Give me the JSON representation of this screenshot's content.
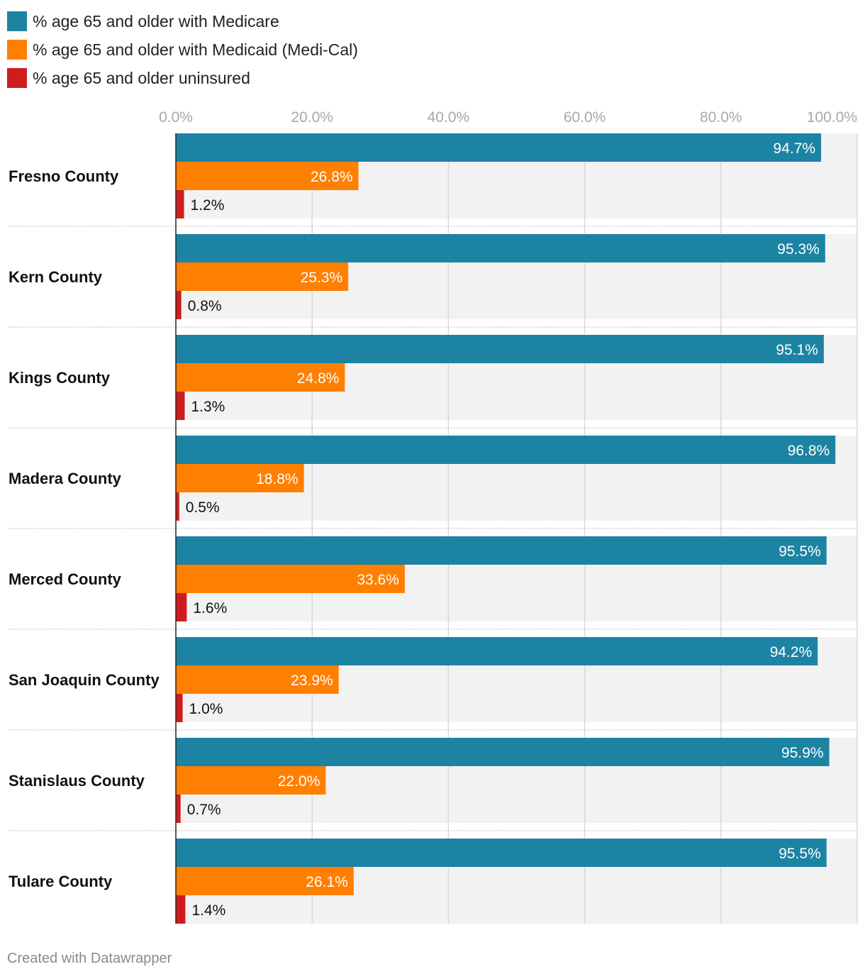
{
  "colors": {
    "medicare": "#1d83a3",
    "medicaid": "#ff7f00",
    "uninsured": "#cf1d1f",
    "track": "#f2f2f2",
    "grid": "#d9d9d9",
    "tick_text": "#a8a8a8",
    "label_text": "#111111"
  },
  "chart_data": {
    "type": "bar",
    "orientation": "horizontal",
    "grouped": true,
    "title": "",
    "xlabel": "",
    "ylabel": "",
    "xlim": [
      0,
      100
    ],
    "x_ticks": [
      0,
      20,
      40,
      60,
      80,
      100
    ],
    "x_tick_labels": [
      "0.0%",
      "20.0%",
      "40.0%",
      "60.0%",
      "80.0%",
      "100.0%"
    ],
    "grid": true,
    "legend_position": "top-left",
    "categories": [
      "Fresno County",
      "Kern County",
      "Kings County",
      "Madera County",
      "Merced County",
      "San Joaquin County",
      "Stanislaus County",
      "Tulare County"
    ],
    "series": [
      {
        "key": "medicare",
        "name": "% age 65 and older with Medicare",
        "values": [
          94.7,
          95.3,
          95.1,
          96.8,
          95.5,
          94.2,
          95.9,
          95.5
        ],
        "labels": [
          "94.7%",
          "95.3%",
          "95.1%",
          "96.8%",
          "95.5%",
          "94.2%",
          "95.9%",
          "95.5%"
        ]
      },
      {
        "key": "medicaid",
        "name": "% age 65 and older with Medicaid (Medi-Cal)",
        "values": [
          26.8,
          25.3,
          24.8,
          18.8,
          33.6,
          23.9,
          22.0,
          26.1
        ],
        "labels": [
          "26.8%",
          "25.3%",
          "24.8%",
          "18.8%",
          "33.6%",
          "23.9%",
          "22.0%",
          "26.1%"
        ]
      },
      {
        "key": "uninsured",
        "name": "% age 65 and older uninsured",
        "values": [
          1.2,
          0.8,
          1.3,
          0.5,
          1.6,
          1.0,
          0.7,
          1.4
        ],
        "labels": [
          "1.2%",
          "0.8%",
          "1.3%",
          "0.5%",
          "1.6%",
          "1.0%",
          "0.7%",
          "1.4%"
        ]
      }
    ]
  },
  "footer": {
    "credit": "Created with Datawrapper"
  }
}
